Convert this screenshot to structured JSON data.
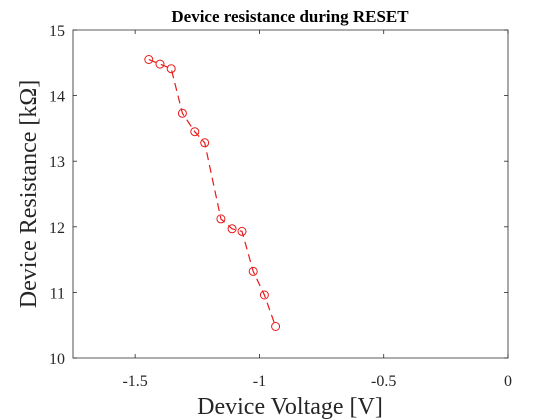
{
  "chart_data": {
    "type": "line",
    "title": "Device resistance during RESET",
    "xlabel": "Device Voltage [V]",
    "ylabel": "Device Resistance [kΩ]",
    "xlim": [
      -1.75,
      0
    ],
    "ylim": [
      10,
      15
    ],
    "xticks": [
      -1.5,
      -1,
      -0.5,
      0
    ],
    "xtick_labels": [
      "-1.5",
      "-1",
      "-0.5",
      "0"
    ],
    "yticks": [
      10,
      11,
      12,
      13,
      14,
      15
    ],
    "ytick_labels": [
      "10",
      "11",
      "12",
      "13",
      "14",
      "15"
    ],
    "grid": false,
    "series": [
      {
        "color": "#e8191a",
        "line_style": "dashed",
        "marker": "circle",
        "x": [
          -1.445,
          -1.4,
          -1.355,
          -1.31,
          -1.26,
          -1.22,
          -1.155,
          -1.11,
          -1.07,
          -1.025,
          -0.98,
          -0.935
        ],
        "y": [
          14.55,
          14.48,
          14.41,
          13.73,
          13.45,
          13.28,
          12.12,
          11.97,
          11.93,
          11.32,
          10.96,
          10.48
        ]
      }
    ]
  }
}
